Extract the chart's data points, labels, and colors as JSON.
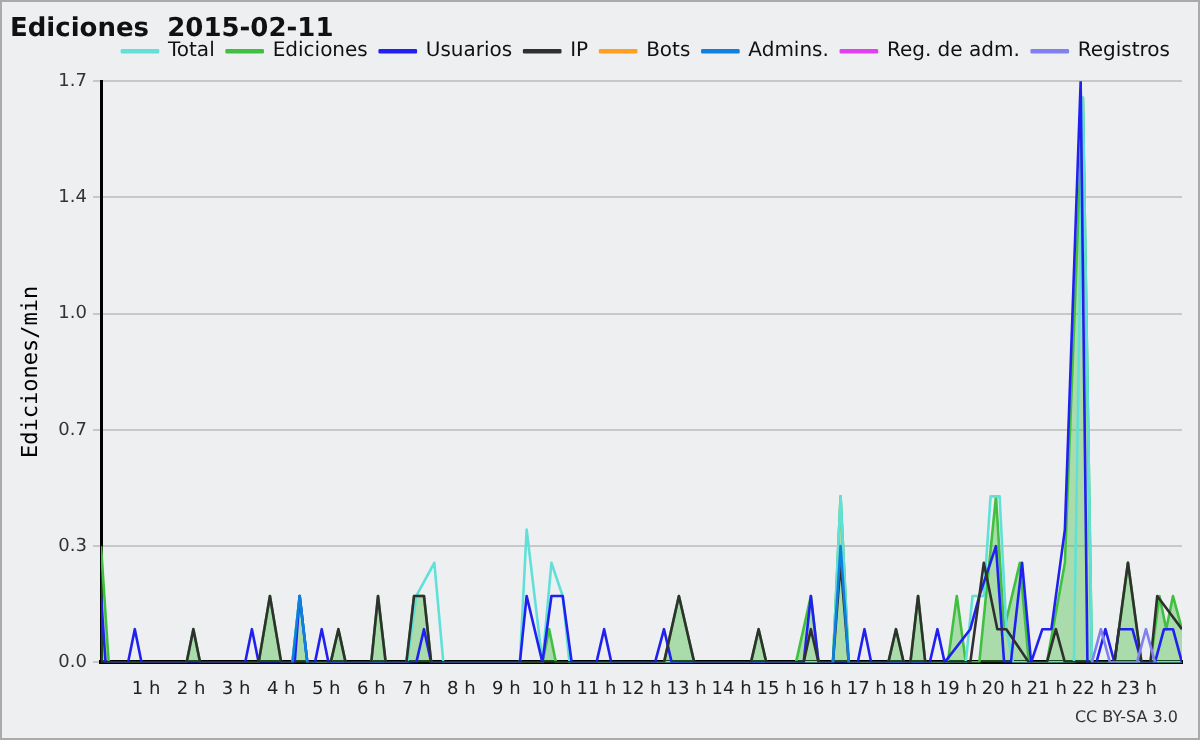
{
  "chart_data": {
    "type": "line",
    "title": "Ediciones  2015-02-11",
    "ylabel": "Ediciones/min",
    "xlim": [
      0,
      24
    ],
    "xticks": [
      {
        "value": 1,
        "label": "1 h"
      },
      {
        "value": 2,
        "label": "2 h"
      },
      {
        "value": 3,
        "label": "3 h"
      },
      {
        "value": 4,
        "label": "4 h"
      },
      {
        "value": 5,
        "label": "5 h"
      },
      {
        "value": 6,
        "label": "6 h"
      },
      {
        "value": 7,
        "label": "7 h"
      },
      {
        "value": 8,
        "label": "8 h"
      },
      {
        "value": 9,
        "label": "9 h"
      },
      {
        "value": 10,
        "label": "10 h"
      },
      {
        "value": 11,
        "label": "11 h"
      },
      {
        "value": 12,
        "label": "12 h"
      },
      {
        "value": 13,
        "label": "13 h"
      },
      {
        "value": 14,
        "label": "14 h"
      },
      {
        "value": 15,
        "label": "15 h"
      },
      {
        "value": 16,
        "label": "16 h"
      },
      {
        "value": 17,
        "label": "17 h"
      },
      {
        "value": 18,
        "label": "18 h"
      },
      {
        "value": 19,
        "label": "19 h"
      },
      {
        "value": 20,
        "label": "20 h"
      },
      {
        "value": 21,
        "label": "21 h"
      },
      {
        "value": 22,
        "label": "22 h"
      },
      {
        "value": 23,
        "label": "23 h"
      }
    ],
    "ylim": [
      0,
      1.75
    ],
    "yticks": [
      {
        "value": 0,
        "label": "0.0"
      },
      {
        "value": 0.35,
        "label": "0.3"
      },
      {
        "value": 0.7,
        "label": "0.7"
      },
      {
        "value": 1.05,
        "label": "1.0"
      },
      {
        "value": 1.4,
        "label": "1.4"
      },
      {
        "value": 1.75,
        "label": "1.7"
      }
    ],
    "grid": "y",
    "legend": "top right",
    "marker": "none",
    "line_style": "solid",
    "annotations": [
      "CC BY-SA 3.0"
    ],
    "series": [
      {
        "name": "Total",
        "color": "#60e0d8",
        "x": [
          4.25,
          4.41,
          4.58,
          6.8,
          7.0,
          7.4,
          7.6,
          9.3,
          9.45,
          9.8,
          10.0,
          10.25,
          10.4,
          16.25,
          16.42,
          16.6,
          19.2,
          19.35,
          19.6,
          19.75,
          19.95,
          20.1,
          20.25,
          21.6,
          21.8,
          22.0,
          24
        ],
        "values": [
          0,
          0.2,
          0,
          0,
          0.2,
          0.3,
          0,
          0,
          0.4,
          0,
          0.3,
          0.2,
          0,
          0,
          0.5,
          0,
          0,
          0.2,
          0.2,
          0.5,
          0.5,
          0.1,
          0,
          0,
          1.7,
          0,
          0
        ]
      },
      {
        "name": "Ediciones",
        "type": "area",
        "color": "#40c040",
        "x": [
          0,
          0.17,
          1.9,
          2.05,
          2.2,
          3.5,
          3.75,
          4.0,
          4.25,
          4.41,
          4.58,
          5.1,
          5.27,
          5.43,
          6.0,
          6.15,
          6.32,
          6.78,
          6.95,
          7.17,
          7.33,
          9.8,
          9.95,
          10.1,
          12.5,
          12.83,
          13.17,
          14.43,
          14.6,
          14.77,
          15.43,
          15.76,
          15.93,
          16.25,
          16.42,
          16.6,
          17.48,
          17.65,
          17.82,
          17.97,
          18.14,
          18.3,
          18.8,
          19.0,
          19.2,
          19.5,
          19.87,
          20.05,
          20.4,
          20.6,
          21.0,
          21.4,
          21.8,
          22.0,
          22.5,
          22.8,
          23.1,
          23.3,
          23.5,
          23.65,
          23.8,
          24
        ],
        "values": [
          0.35,
          0,
          0,
          0.1,
          0,
          0,
          0.2,
          0,
          0,
          0.2,
          0,
          0,
          0.1,
          0,
          0,
          0.2,
          0,
          0,
          0.2,
          0.2,
          0,
          0,
          0.1,
          0,
          0,
          0.2,
          0,
          0,
          0.1,
          0,
          0,
          0.2,
          0,
          0,
          0.5,
          0,
          0,
          0.1,
          0,
          0,
          0.2,
          0,
          0,
          0.2,
          0,
          0,
          0.5,
          0.1,
          0.3,
          0,
          0,
          0.3,
          1.7,
          0,
          0,
          0.3,
          0,
          0,
          0.2,
          0.1,
          0.2,
          0.1
        ]
      },
      {
        "name": "Usuarios",
        "color": "#2020f0",
        "x": [
          0,
          0.1,
          0.6,
          0.75,
          0.9,
          3.2,
          3.35,
          3.5,
          4.3,
          4.41,
          4.58,
          4.75,
          4.9,
          5.05,
          7.0,
          7.17,
          7.33,
          9.3,
          9.45,
          9.8,
          10.0,
          10.25,
          10.45,
          11.0,
          11.17,
          11.33,
          12.3,
          12.5,
          12.67,
          15.6,
          15.76,
          15.93,
          16.8,
          16.95,
          17.1,
          18.4,
          18.57,
          18.73,
          19.3,
          19.5,
          19.87,
          20.05,
          20.2,
          20.45,
          20.65,
          20.9,
          21.1,
          21.4,
          21.75,
          21.9,
          22.1,
          22.3,
          22.5,
          22.6,
          22.9,
          23.1,
          23.4,
          23.6,
          23.8,
          24
        ],
        "values": [
          0.2,
          0,
          0,
          0.1,
          0,
          0,
          0.1,
          0,
          0,
          0.2,
          0,
          0,
          0.1,
          0,
          0,
          0.1,
          0,
          0,
          0.2,
          0,
          0.2,
          0.2,
          0,
          0,
          0.1,
          0,
          0,
          0.1,
          0,
          0,
          0.2,
          0,
          0,
          0.1,
          0,
          0,
          0.1,
          0,
          0.1,
          0.2,
          0.35,
          0,
          0,
          0.3,
          0,
          0.1,
          0.1,
          0.4,
          1.75,
          0,
          0,
          0.1,
          0,
          0.1,
          0.1,
          0,
          0,
          0.1,
          0.1,
          0
        ]
      },
      {
        "name": "IP",
        "color": "#303030",
        "x": [
          0,
          1.9,
          2.05,
          2.2,
          3.5,
          3.75,
          4.0,
          5.1,
          5.27,
          5.43,
          6.0,
          6.15,
          6.32,
          6.78,
          6.95,
          7.17,
          7.33,
          12.5,
          12.83,
          13.17,
          14.43,
          14.6,
          14.77,
          15.6,
          15.76,
          15.93,
          16.25,
          16.42,
          16.6,
          17.48,
          17.65,
          17.82,
          17.97,
          18.14,
          18.3,
          19.3,
          19.6,
          19.9,
          20.1,
          20.6,
          21.0,
          21.2,
          21.4,
          22.5,
          22.8,
          23.1,
          23.3,
          23.45,
          24
        ],
        "values": [
          0,
          0,
          0.1,
          0,
          0,
          0.2,
          0,
          0,
          0.1,
          0,
          0,
          0.2,
          0,
          0,
          0.2,
          0.2,
          0,
          0,
          0.2,
          0,
          0,
          0.1,
          0,
          0,
          0.1,
          0,
          0,
          0.3,
          0,
          0,
          0.1,
          0,
          0,
          0.2,
          0,
          0,
          0.3,
          0.1,
          0.1,
          0,
          0,
          0.1,
          0,
          0,
          0.3,
          0,
          0,
          0.2,
          0.1
        ]
      },
      {
        "name": "Bots",
        "color": "#ffa020"
      },
      {
        "name": "Admins.",
        "color": "#1080e0",
        "x": [
          4.25,
          4.41,
          4.58,
          10.0,
          16.25,
          16.42,
          16.6
        ],
        "values": [
          0,
          0.2,
          0,
          null,
          0,
          0.35,
          0
        ]
      },
      {
        "name": "Reg. de adm.",
        "color": "#e040f0"
      },
      {
        "name": "Registros",
        "color": "#8080f0",
        "x": [
          22.0,
          22.2,
          22.4,
          23.0,
          23.2,
          23.4
        ],
        "values": [
          0,
          0.1,
          0,
          0,
          0.1,
          0
        ]
      }
    ]
  }
}
